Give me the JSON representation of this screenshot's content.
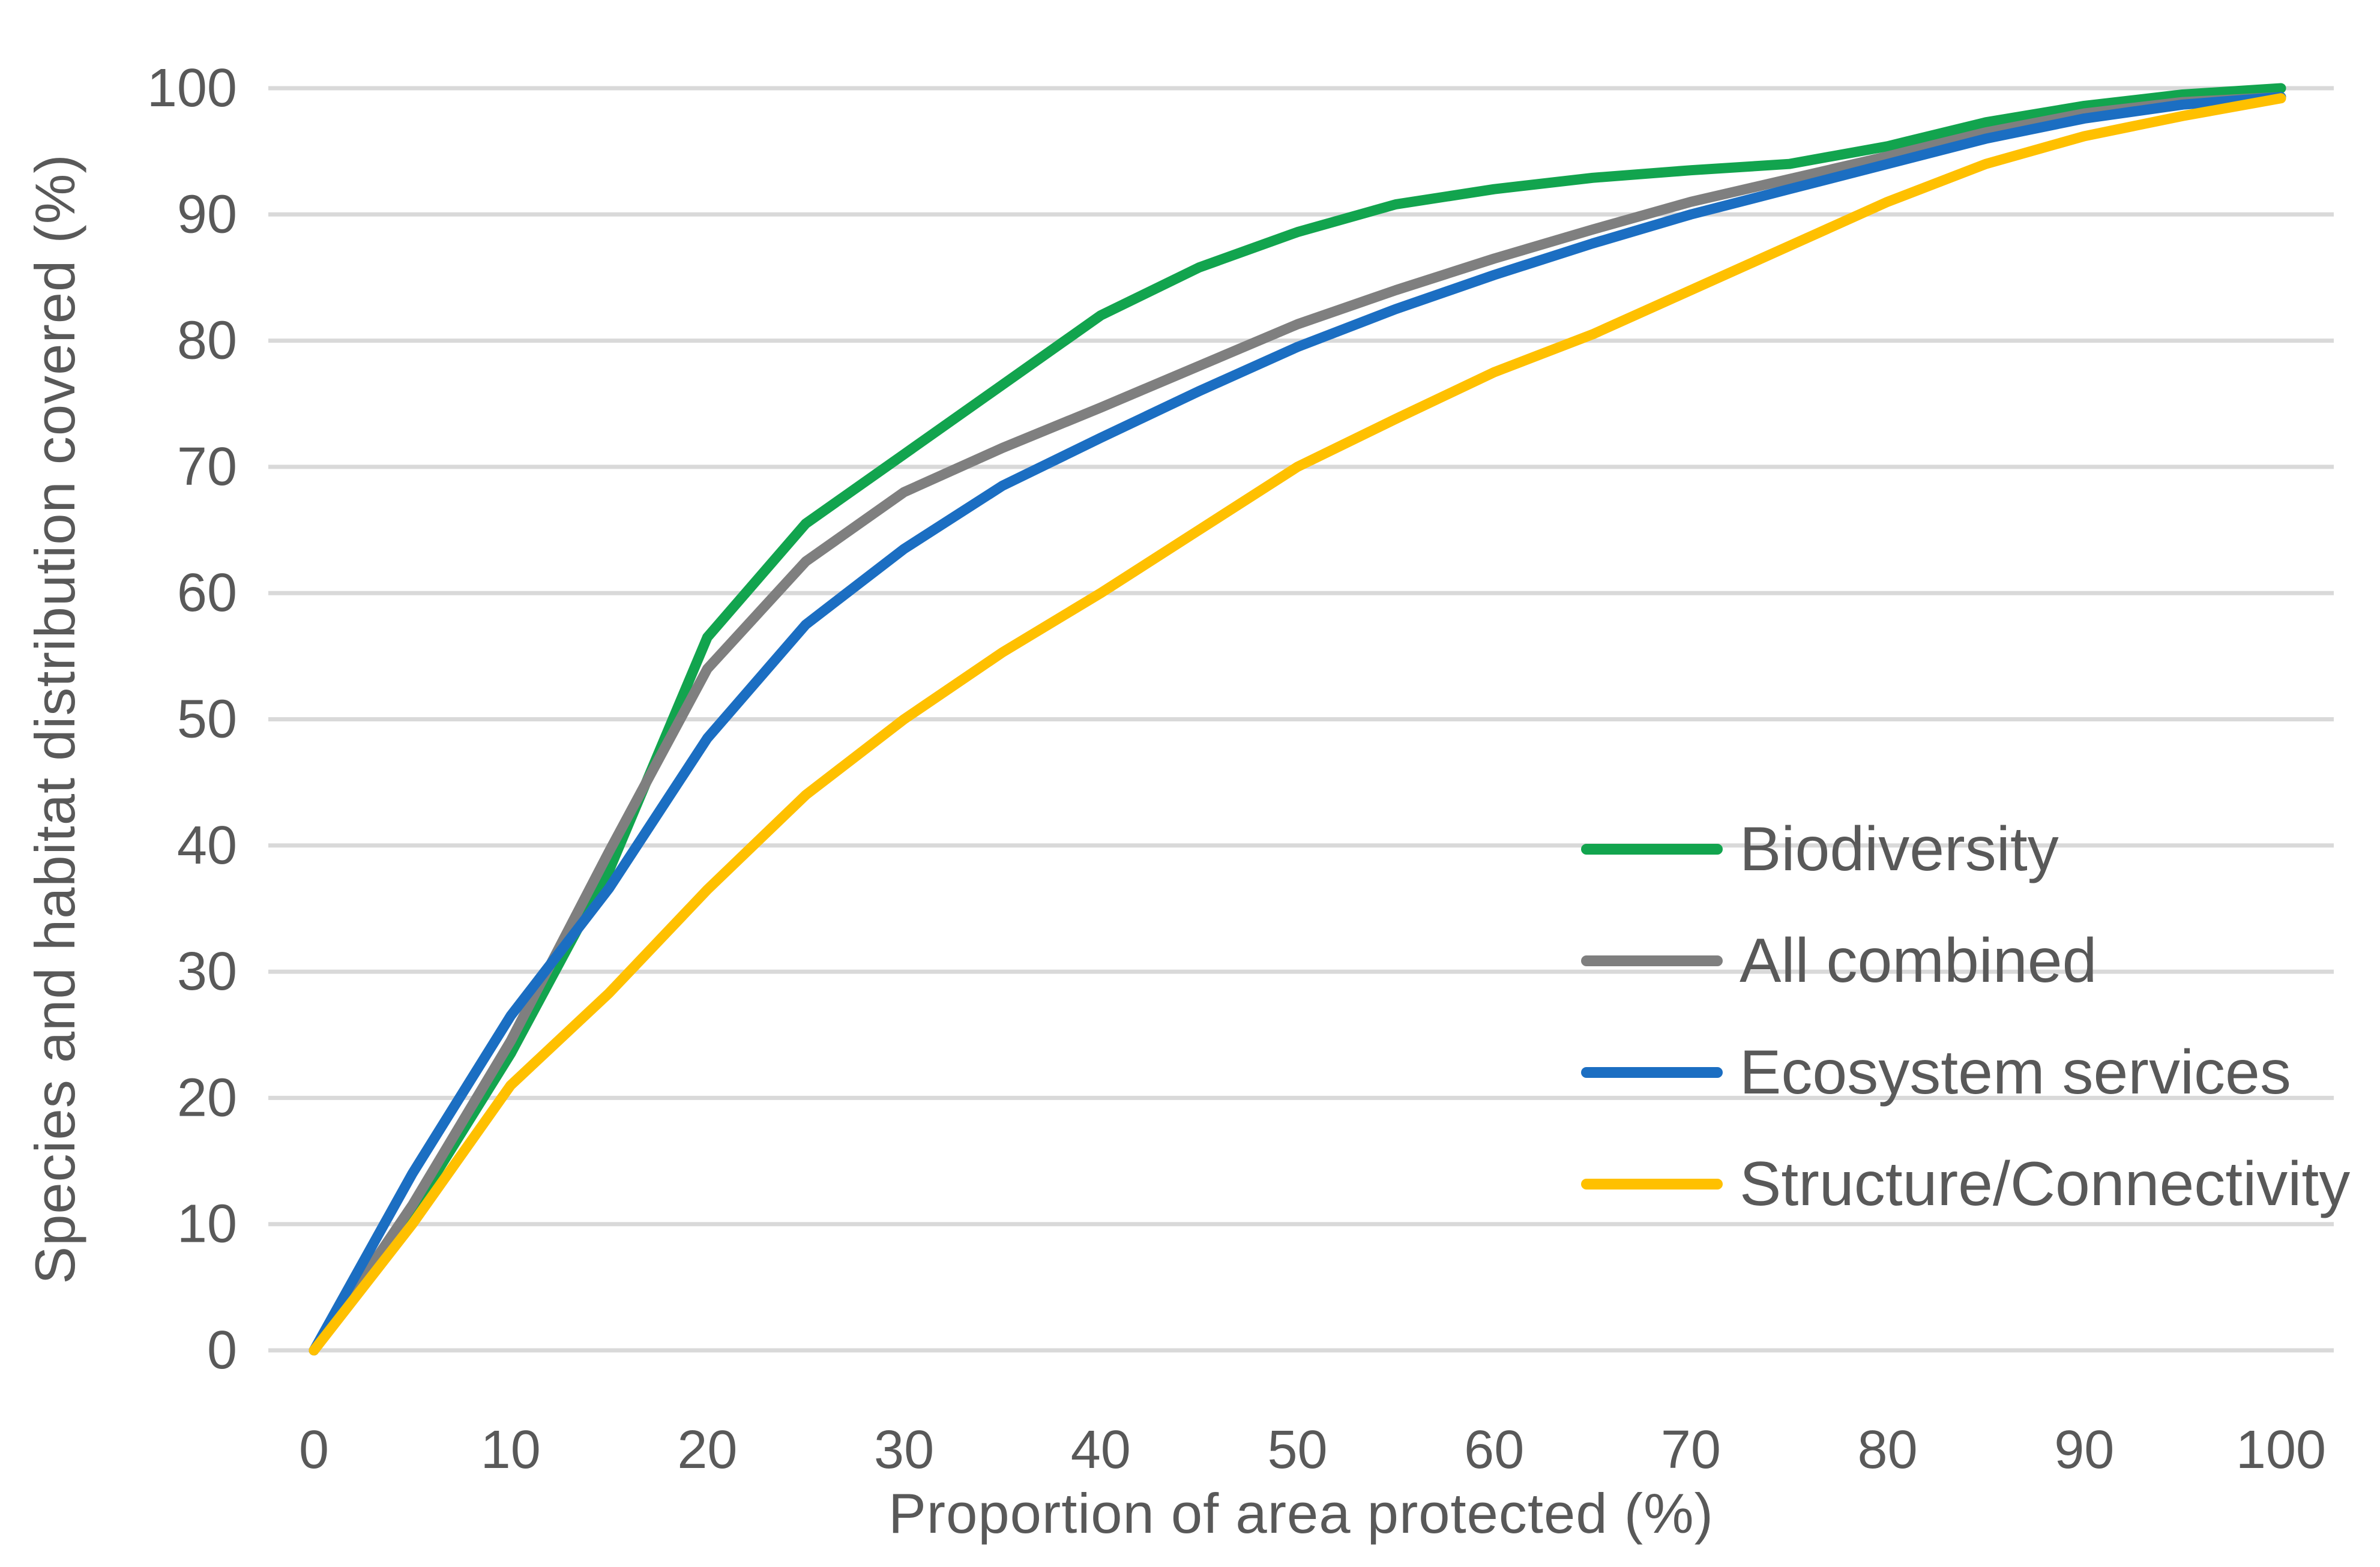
{
  "chart_data": {
    "type": "line",
    "title": "",
    "xlabel": "Proportion of area protected (%)",
    "ylabel": "Species and habitat distribution covered (%)",
    "xlim": [
      0,
      100
    ],
    "ylim": [
      0,
      100
    ],
    "xticks": [
      0,
      10,
      20,
      30,
      40,
      50,
      60,
      70,
      80,
      90,
      100
    ],
    "yticks": [
      0,
      10,
      20,
      30,
      40,
      50,
      60,
      70,
      80,
      90,
      100
    ],
    "grid": true,
    "legend_position": "middle-right",
    "gridline_color": "#D9D9D9",
    "text_color": "#595959",
    "x": [
      0,
      5,
      10,
      15,
      20,
      25,
      30,
      35,
      40,
      45,
      50,
      55,
      60,
      65,
      70,
      75,
      80,
      85,
      90,
      95,
      100
    ],
    "series": [
      {
        "name": "Biodiversity",
        "color": "#12A44E",
        "values": [
          0,
          11,
          23.5,
          38,
          56.5,
          65.5,
          71,
          76.5,
          82,
          85.8,
          88.6,
          90.8,
          92,
          92.9,
          93.5,
          94,
          95.4,
          97.3,
          98.6,
          99.5,
          100
        ]
      },
      {
        "name": "All combined",
        "color": "#7F7F7F",
        "values": [
          0,
          11.5,
          24.5,
          39.5,
          54,
          62.5,
          68,
          71.5,
          74.7,
          78,
          81.3,
          84,
          86.5,
          88.8,
          91,
          92.8,
          94.6,
          96.5,
          98,
          98.9,
          99.3
        ]
      },
      {
        "name": "Ecosystem services",
        "color": "#1B6EC2",
        "values": [
          0,
          14,
          26.5,
          36.6,
          48.5,
          57.5,
          63.5,
          68.5,
          72.3,
          76,
          79.5,
          82.5,
          85.2,
          87.7,
          90,
          92,
          94,
          96,
          97.6,
          98.7,
          99.3
        ]
      },
      {
        "name": "Structure/Connectivity",
        "color": "#FFC000",
        "values": [
          0,
          10,
          21,
          28.3,
          36.5,
          44,
          50,
          55.3,
          60,
          65,
          70,
          73.8,
          77.5,
          80.5,
          84,
          87.5,
          91,
          94,
          96.2,
          97.8,
          99.2
        ]
      }
    ]
  }
}
